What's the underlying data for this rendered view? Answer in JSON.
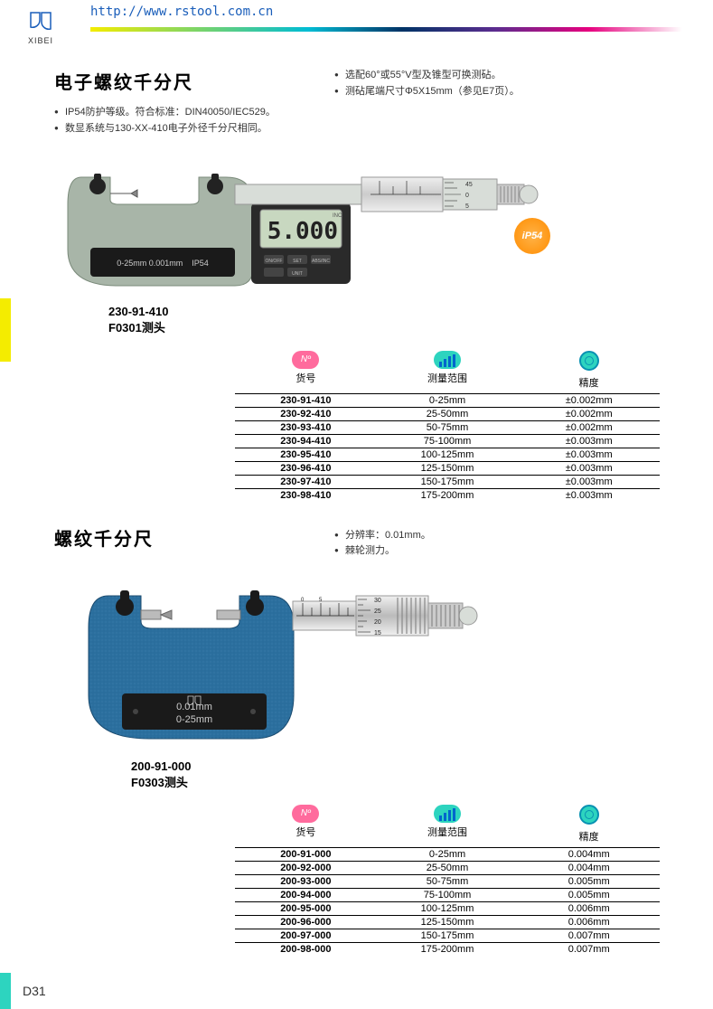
{
  "header": {
    "url": "http://www.rstool.com.cn",
    "brand": "XIBEI"
  },
  "section1": {
    "title": "电子螺纹千分尺",
    "bullets_left": [
      "IP54防护等级。符合标准：DIN40050/IEC529。",
      "数显系统与130-XX-410电子外径千分尺相同。"
    ],
    "bullets_right": [
      "选配60°或55°V型及锥型可换测砧。",
      "测砧尾端尺寸Φ5X15mm（参见E7页）。"
    ],
    "badge": "iP54",
    "model_code": "230-91-410",
    "model_probe": "F0301测头",
    "display_value": "5.000",
    "plate_text": "0-25mm 0.001mm   IP54",
    "table": {
      "headers": {
        "no_icon": "Nº",
        "col1": "货号",
        "col2": "测量范围",
        "col3": "精度"
      },
      "rows": [
        {
          "code": "230-91-410",
          "range": "0-25mm",
          "acc": "±0.002mm"
        },
        {
          "code": "230-92-410",
          "range": "25-50mm",
          "acc": "±0.002mm"
        },
        {
          "code": "230-93-410",
          "range": "50-75mm",
          "acc": "±0.002mm"
        },
        {
          "code": "230-94-410",
          "range": "75-100mm",
          "acc": "±0.003mm"
        },
        {
          "code": "230-95-410",
          "range": "100-125mm",
          "acc": "±0.003mm"
        },
        {
          "code": "230-96-410",
          "range": "125-150mm",
          "acc": "±0.003mm"
        },
        {
          "code": "230-97-410",
          "range": "150-175mm",
          "acc": "±0.003mm"
        },
        {
          "code": "230-98-410",
          "range": "175-200mm",
          "acc": "±0.003mm"
        }
      ]
    }
  },
  "section2": {
    "title": "螺纹千分尺",
    "bullets_right": [
      "分辨率：0.01mm。",
      "棘轮测力。"
    ],
    "plate_line1": "0.01mm",
    "plate_line2": "0-25mm",
    "model_code": "200-91-000",
    "model_probe": "F0303测头",
    "table": {
      "headers": {
        "no_icon": "Nº",
        "col1": "货号",
        "col2": "测量范围",
        "col3": "精度"
      },
      "rows": [
        {
          "code": "200-91-000",
          "range": "0-25mm",
          "acc": "0.004mm"
        },
        {
          "code": "200-92-000",
          "range": "25-50mm",
          "acc": "0.004mm"
        },
        {
          "code": "200-93-000",
          "range": "50-75mm",
          "acc": "0.005mm"
        },
        {
          "code": "200-94-000",
          "range": "75-100mm",
          "acc": "0.005mm"
        },
        {
          "code": "200-95-000",
          "range": "100-125mm",
          "acc": "0.006mm"
        },
        {
          "code": "200-96-000",
          "range": "125-150mm",
          "acc": "0.006mm"
        },
        {
          "code": "200-97-000",
          "range": "150-175mm",
          "acc": "0.007mm"
        },
        {
          "code": "200-98-000",
          "range": "175-200mm",
          "acc": "0.007mm"
        }
      ]
    }
  },
  "page_number": "D31",
  "colors": {
    "accent_yellow": "#f4ec00",
    "accent_teal": "#2dd4bf",
    "brand_blue": "#1a5eba",
    "frame_gray": "#a8b5a8",
    "frame_blue": "#2b6f9e",
    "plate_dark": "#1a1a1a"
  }
}
